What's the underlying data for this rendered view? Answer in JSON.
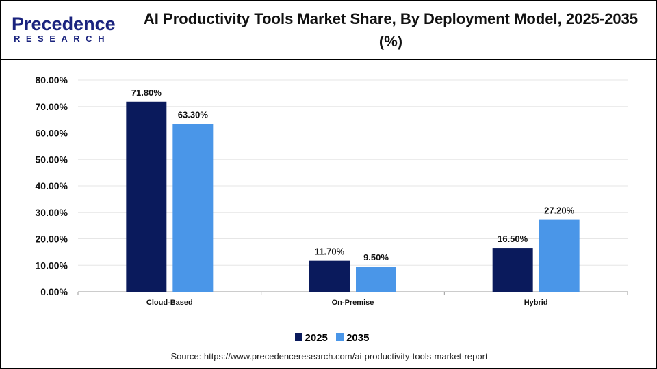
{
  "logo": {
    "line1": "Precedence",
    "line2": "RESEARCH"
  },
  "title": "AI Productivity Tools Market Share, By Deployment Model, 2025-2035 (%)",
  "source": "Source: https://www.precedenceresearch.com/ai-productivity-tools-market-report",
  "chart_data": {
    "type": "bar",
    "title": "AI Productivity Tools Market Share, By Deployment Model, 2025-2035 (%)",
    "categories": [
      "Cloud-Based",
      "On-Premise",
      "Hybrid"
    ],
    "series": [
      {
        "name": "2025",
        "values": [
          71.8,
          11.7,
          16.5
        ],
        "color": "#0a1a5c",
        "labels": [
          "71.80%",
          "11.70%",
          "16.50%"
        ]
      },
      {
        "name": "2035",
        "values": [
          63.3,
          9.5,
          27.2
        ],
        "color": "#4a96e8",
        "labels": [
          "63.30%",
          "9.50%",
          "27.20%"
        ]
      }
    ],
    "ylim": [
      0,
      80
    ],
    "yticks": [
      "0.00%",
      "10.00%",
      "20.00%",
      "30.00%",
      "40.00%",
      "50.00%",
      "60.00%",
      "70.00%",
      "80.00%"
    ],
    "grid": true,
    "legend": "bottom"
  }
}
